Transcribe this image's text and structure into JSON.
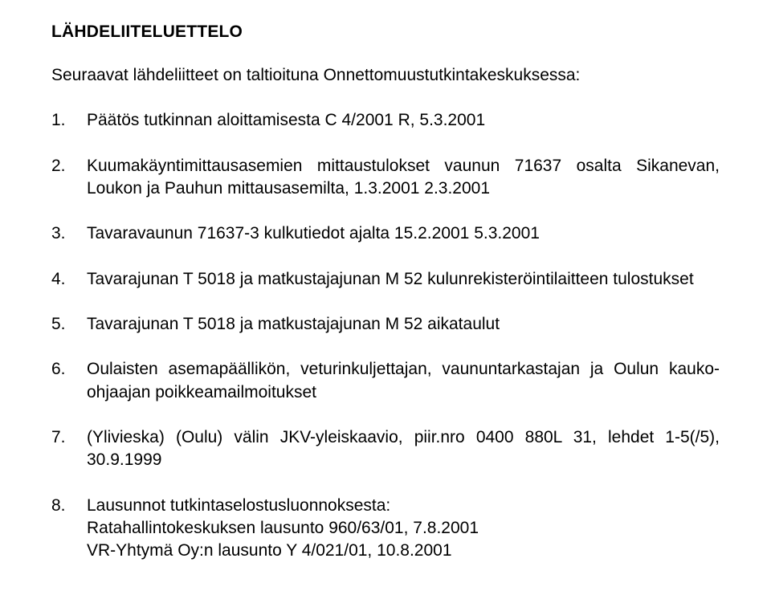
{
  "title": "LÄHDELIITELUETTELO",
  "intro": "Seuraavat lähdeliitteet on taltioituna Onnettomuustutkintakeskuksessa:",
  "items": [
    {
      "n": "1.",
      "text": "Päätös tutkinnan aloittamisesta C 4/2001 R, 5.3.2001"
    },
    {
      "n": "2.",
      "text": "Kuumakäyntimittausasemien mittaustulokset vaunun 71637 osalta Sikanevan, Loukon ja Pauhun mittausasemilta, 1.3.2001 2.3.2001"
    },
    {
      "n": "3.",
      "text": "Tavaravaunun 71637-3 kulkutiedot ajalta 15.2.2001 5.3.2001"
    },
    {
      "n": "4.",
      "text": "Tavarajunan T 5018 ja matkustajajunan M 52 kulunrekisteröintilaitteen tulostukset"
    },
    {
      "n": "5.",
      "text": "Tavarajunan T 5018 ja matkustajajunan M 52 aikataulut"
    },
    {
      "n": "6.",
      "text": "Oulaisten asemapäällikön, veturinkuljettajan, vaununtarkastajan ja Oulun kauko-ohjaajan poikkeamailmoitukset"
    },
    {
      "n": "7.",
      "text": "(Ylivieska) (Oulu) välin JKV-yleiskaavio, piir.nro 0400 880L 31, lehdet 1-5(/5), 30.9.1999"
    },
    {
      "n": "8.",
      "text": "Lausunnot tutkintaselostusluonnoksesta:",
      "sublines": [
        "Ratahallintokeskuksen lausunto 960/63/01, 7.8.2001",
        "VR-Yhtymä Oy:n lausunto Y 4/021/01, 10.8.2001"
      ]
    }
  ]
}
